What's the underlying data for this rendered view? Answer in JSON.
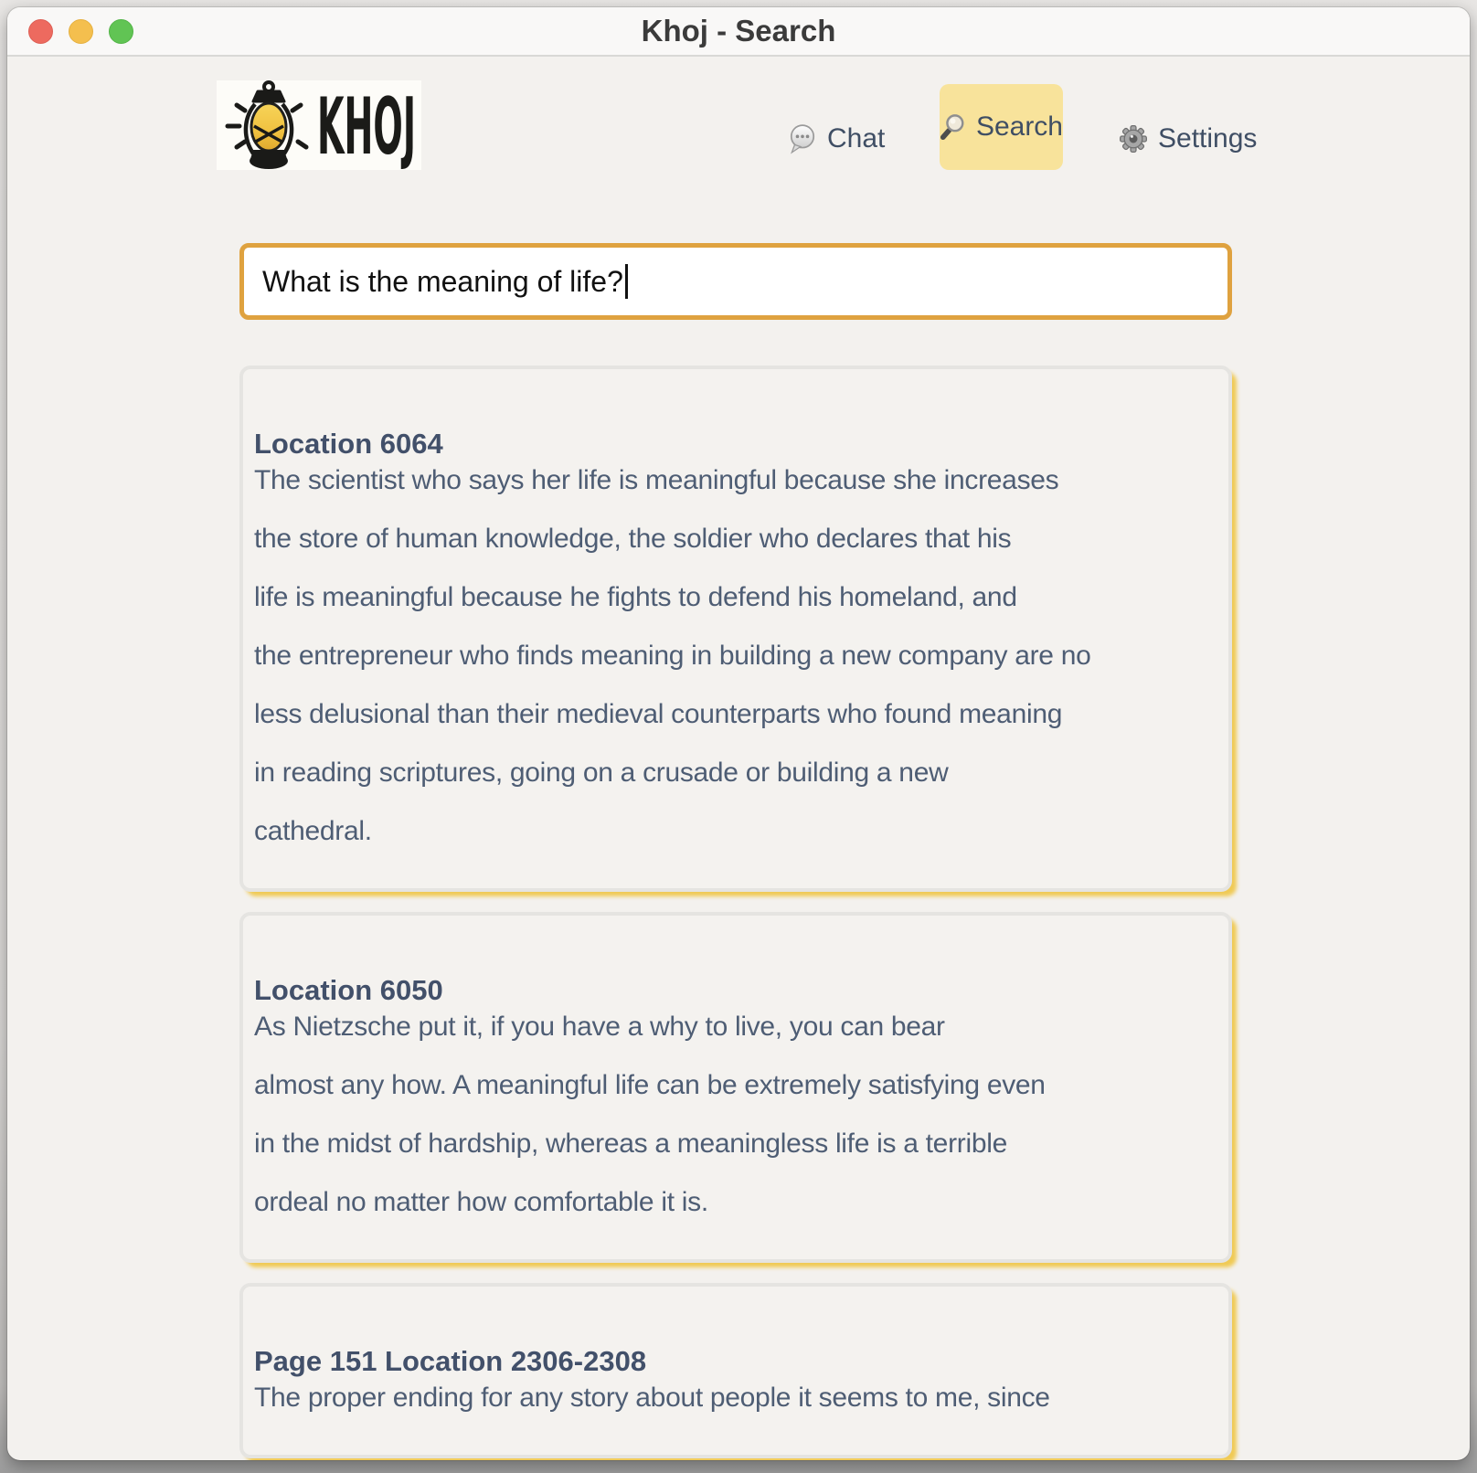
{
  "window": {
    "title": "Khoj - Search"
  },
  "brand": {
    "name": "KHOJ"
  },
  "nav": {
    "chat_label": "Chat",
    "search_label": "Search",
    "settings_label": "Settings",
    "active_item": "Search"
  },
  "search": {
    "query": "What is the meaning of life?"
  },
  "results": [
    {
      "title": "Location 6064",
      "lines": [
        "The scientist who says her life is meaningful because she increases",
        "the store of human knowledge, the soldier who declares that his",
        "life is meaningful because he fights to defend his homeland, and",
        "the entrepreneur who finds meaning in building a new company are no",
        "less delusional than their medieval counterparts who found meaning",
        "in reading scriptures, going on a crusade or building a new",
        "cathedral."
      ]
    },
    {
      "title": "Location 6050",
      "lines": [
        "As Nietzsche put it, if you have a why to live, you can bear",
        "almost any how. A meaningful life can be extremely satisfying even",
        "in the midst of hardship, whereas a meaningless life is a terrible",
        "ordeal no matter how comfortable it is."
      ]
    },
    {
      "title": "Page 151 Location 2306-2308",
      "lines": [
        "The proper ending for any story about people it seems to me, since"
      ]
    }
  ],
  "colors": {
    "accent_yellow": "#f8e39b",
    "input_border": "#dfa23f",
    "card_shadow": "#f0ca55",
    "traffic_close": "#ed6a5f",
    "traffic_minimize": "#f4bf4e",
    "traffic_zoom": "#61c454",
    "lantern_glow": "#f2c84b",
    "text_body": "#4e5d74",
    "text_title": "#42506a"
  }
}
